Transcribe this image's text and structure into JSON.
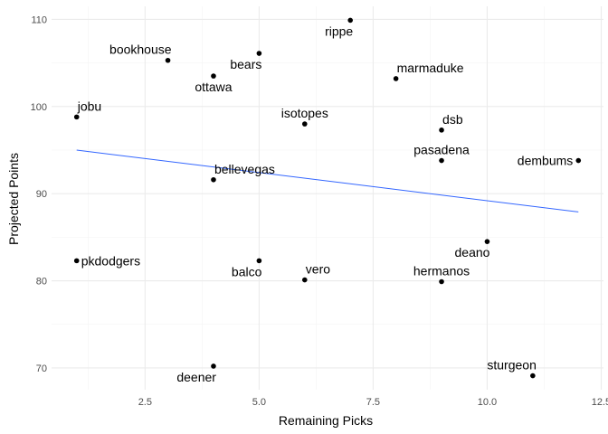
{
  "chart_data": {
    "type": "scatter",
    "title": "",
    "xlabel": "Remaining Picks",
    "ylabel": "Projected Points",
    "xlim": [
      0.45,
      12.55
    ],
    "ylim": [
      67.5,
      111.5
    ],
    "x_ticks": [
      2.5,
      5.0,
      7.5,
      10.0,
      12.5
    ],
    "x_tick_labels": [
      "2.5",
      "5.0",
      "7.5",
      "10.0",
      "12.5"
    ],
    "y_ticks": [
      70,
      80,
      90,
      100,
      110
    ],
    "y_tick_labels": [
      "70",
      "80",
      "90",
      "100",
      "110"
    ],
    "grid": true,
    "point_color": "#000000",
    "trend_color": "#3366FF",
    "points": [
      {
        "label": "rippe",
        "x": 7,
        "y": 109.9,
        "anchor": "below-left"
      },
      {
        "label": "bears",
        "x": 5,
        "y": 106.1,
        "anchor": "below-left"
      },
      {
        "label": "bookhouse",
        "x": 3,
        "y": 105.3,
        "anchor": "above-left"
      },
      {
        "label": "ottawa",
        "x": 4,
        "y": 103.5,
        "anchor": "below"
      },
      {
        "label": "marmaduke",
        "x": 8,
        "y": 103.2,
        "anchor": "above-right"
      },
      {
        "label": "jobu",
        "x": 1,
        "y": 98.8,
        "anchor": "above-right"
      },
      {
        "label": "isotopes",
        "x": 6,
        "y": 98.0,
        "anchor": "above"
      },
      {
        "label": "dsb",
        "x": 9,
        "y": 97.3,
        "anchor": "above-right"
      },
      {
        "label": "pasadena",
        "x": 9,
        "y": 93.8,
        "anchor": "above"
      },
      {
        "label": "dembums",
        "x": 12,
        "y": 93.8,
        "anchor": "left"
      },
      {
        "label": "bellevegas",
        "x": 4,
        "y": 91.6,
        "anchor": "above-right"
      },
      {
        "label": "deano",
        "x": 10,
        "y": 84.5,
        "anchor": "below-left"
      },
      {
        "label": "pkdodgers",
        "x": 1,
        "y": 82.3,
        "anchor": "right"
      },
      {
        "label": "balco",
        "x": 5,
        "y": 82.3,
        "anchor": "below-left"
      },
      {
        "label": "vero",
        "x": 6,
        "y": 80.1,
        "anchor": "above-right"
      },
      {
        "label": "hermanos",
        "x": 9,
        "y": 79.9,
        "anchor": "above"
      },
      {
        "label": "deener",
        "x": 4,
        "y": 70.2,
        "anchor": "below-left"
      },
      {
        "label": "sturgeon",
        "x": 11,
        "y": 69.1,
        "anchor": "above-left"
      }
    ],
    "trend_line": {
      "x": [
        1,
        12
      ],
      "y": [
        95.0,
        87.9
      ]
    }
  }
}
